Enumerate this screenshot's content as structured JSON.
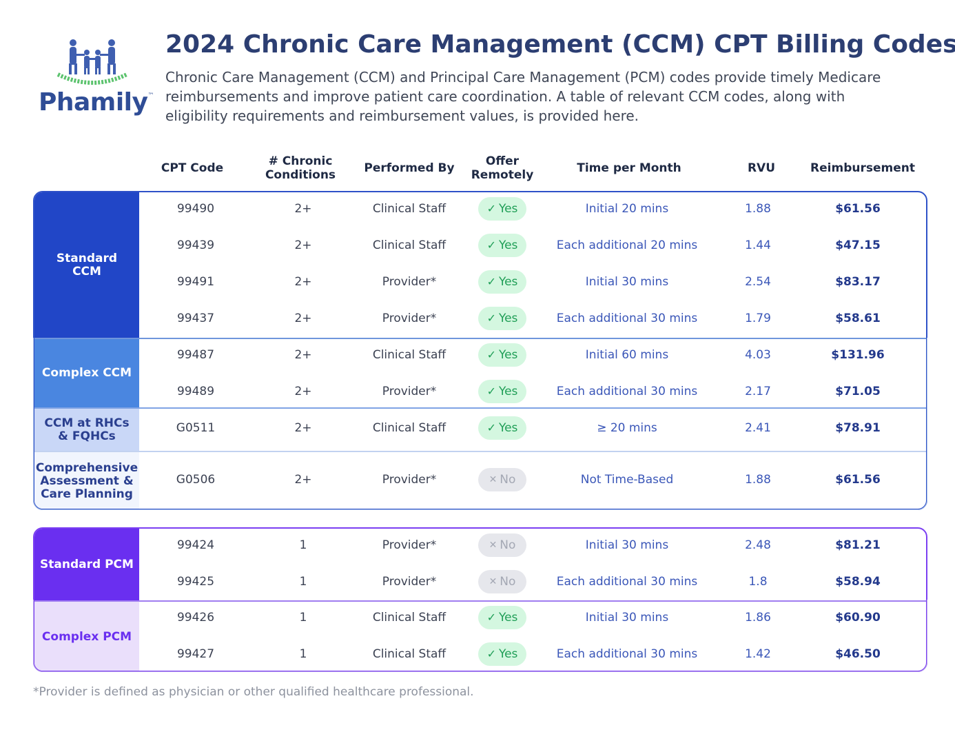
{
  "brand": {
    "name": "Phamily",
    "tm": "™"
  },
  "title": "2024 Chronic Care Management (CCM) CPT Billing Codes",
  "intro": "Chronic Care Management (CCM) and Principal Care Management (PCM) codes provide timely Medicare reimbursements and improve patient care coordination. A table of relevant CCM codes, along with eligibility requirements and reimbursement values, is provided here.",
  "headers": {
    "cpt": "CPT Code",
    "conditions_1": "# Chronic",
    "conditions_2": "Conditions",
    "performed": "Performed By",
    "offer_1": "Offer",
    "offer_2": "Remotely",
    "time": "Time per Month",
    "rvu": "RVU",
    "reimbursement": "Reimbursement"
  },
  "groups": {
    "standard_ccm_1": "Standard",
    "standard_ccm_2": "CCM",
    "complex_ccm": "Complex CCM",
    "rhc_1": "CCM at RHCs",
    "rhc_2": "& FQHCs",
    "comp_1": "Comprehensive",
    "comp_2": "Assessment &",
    "comp_3": "Care Planning",
    "standard_pcm": "Standard PCM",
    "complex_pcm": "Complex PCM"
  },
  "colors": {
    "standard_ccm": "#2146c7",
    "complex_ccm": "#4a86e0",
    "rhc": "#c9d7f7",
    "comprehensive": "#f1f5fd",
    "standard_pcm": "#6a2ff0",
    "complex_pcm": "#eadffb",
    "yes": "#1f9e56",
    "no": "#a4a8b4"
  },
  "rows": [
    {
      "code": "99490",
      "conditions": "2+",
      "performed": "Clinical Staff",
      "offer_icon": "check-icon",
      "offer": "Yes",
      "time": "Initial 20 mins",
      "rvu": "1.88",
      "reimbursement": "$61.56"
    },
    {
      "code": "99439",
      "conditions": "2+",
      "performed": "Clinical Staff",
      "offer_icon": "check-icon",
      "offer": "Yes",
      "time": "Each additional 20 mins",
      "rvu": "1.44",
      "reimbursement": "$47.15"
    },
    {
      "code": "99491",
      "conditions": "2+",
      "performed": "Provider*",
      "offer_icon": "check-icon",
      "offer": "Yes",
      "time": "Initial 30 mins",
      "rvu": "2.54",
      "reimbursement": "$83.17"
    },
    {
      "code": "99437",
      "conditions": "2+",
      "performed": "Provider*",
      "offer_icon": "check-icon",
      "offer": "Yes",
      "time": "Each additional 30 mins",
      "rvu": "1.79",
      "reimbursement": "$58.61"
    },
    {
      "code": "99487",
      "conditions": "2+",
      "performed": "Clinical Staff",
      "offer_icon": "check-icon",
      "offer": "Yes",
      "time": "Initial 60 mins",
      "rvu": "4.03",
      "reimbursement": "$131.96"
    },
    {
      "code": "99489",
      "conditions": "2+",
      "performed": "Provider*",
      "offer_icon": "check-icon",
      "offer": "Yes",
      "time": "Each additional 30 mins",
      "rvu": "2.17",
      "reimbursement": "$71.05"
    },
    {
      "code": "G0511",
      "conditions": "2+",
      "performed": "Clinical Staff",
      "offer_icon": "check-icon",
      "offer": "Yes",
      "time": "≥ 20 mins",
      "rvu": "2.41",
      "reimbursement": "$78.91"
    },
    {
      "code": "G0506",
      "conditions": "2+",
      "performed": "Provider*",
      "offer_icon": "x-icon",
      "offer": "No",
      "time": "Not Time-Based",
      "rvu": "1.88",
      "reimbursement": "$61.56"
    },
    {
      "code": "99424",
      "conditions": "1",
      "performed": "Provider*",
      "offer_icon": "x-icon",
      "offer": "No",
      "time": "Initial 30 mins",
      "rvu": "2.48",
      "reimbursement": "$81.21"
    },
    {
      "code": "99425",
      "conditions": "1",
      "performed": "Provider*",
      "offer_icon": "x-icon",
      "offer": "No",
      "time": "Each additional 30 mins",
      "rvu": "1.8",
      "reimbursement": "$58.94"
    },
    {
      "code": "99426",
      "conditions": "1",
      "performed": "Clinical Staff",
      "offer_icon": "check-icon",
      "offer": "Yes",
      "time": "Initial 30 mins",
      "rvu": "1.86",
      "reimbursement": "$60.90"
    },
    {
      "code": "99427",
      "conditions": "1",
      "performed": "Clinical Staff",
      "offer_icon": "check-icon",
      "offer": "Yes",
      "time": "Each additional 30 mins",
      "rvu": "1.42",
      "reimbursement": "$46.50"
    }
  ],
  "footnote": "*Provider is defined as physician or other qualified healthcare professional."
}
